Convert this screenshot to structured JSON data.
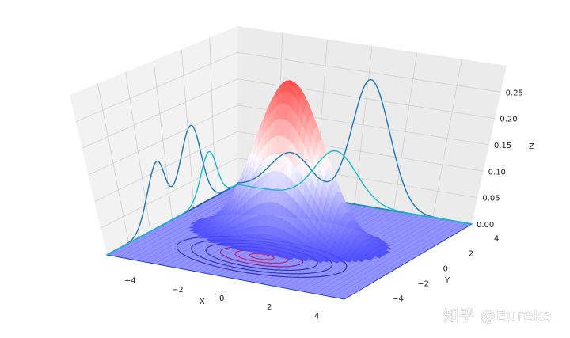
{
  "chart_data": {
    "type": "surface",
    "title": "",
    "xlabel": "X",
    "ylabel": "Y",
    "zlabel": "Z",
    "x_range": [
      -5,
      5
    ],
    "y_range": [
      -5,
      5
    ],
    "zlim": [
      0,
      0.3
    ],
    "x_ticks": [
      "−4",
      "−2",
      "0",
      "2",
      "4"
    ],
    "y_ticks": [
      "−4",
      "−2",
      "0",
      "2",
      "4"
    ],
    "z_ticks": [
      "0.00",
      "0.05",
      "0.10",
      "0.15",
      "0.20",
      "0.25"
    ],
    "surface": {
      "function": "bivariate_gaussian",
      "mean": [
        0,
        0
      ],
      "sigma_x": 1.4,
      "sigma_y": 0.8,
      "peak_z": 0.24,
      "colormap": "bwr",
      "floor_color": "#6a6aff"
    },
    "marginal_curves": [
      {
        "plane": "x",
        "peaks": [
          {
            "center": 1.4,
            "height": 0.14,
            "width": 0.8
          },
          {
            "center": -1.2,
            "height": 0.11,
            "width": 0.7
          }
        ],
        "color": "#1f77b4"
      },
      {
        "plane": "x",
        "peaks": [
          {
            "center": 2.8,
            "height": 0.08,
            "width": 0.6
          }
        ],
        "color": "#17becf"
      },
      {
        "plane": "y",
        "peaks": [
          {
            "center": 0.7,
            "height": 0.28,
            "width": 0.8
          },
          {
            "center": -2.7,
            "height": 0.09,
            "width": 0.9
          }
        ],
        "color": "#1f77b4"
      },
      {
        "plane": "y",
        "peaks": [
          {
            "center": -0.8,
            "height": 0.11,
            "width": 0.9
          }
        ],
        "color": "#17becf"
      }
    ],
    "contours": {
      "levels": 6,
      "colors": [
        "#3030b0",
        "#8a1f7a",
        "#d02050"
      ]
    },
    "grid": true
  },
  "watermark": {
    "text": "知乎 @Eureka"
  }
}
